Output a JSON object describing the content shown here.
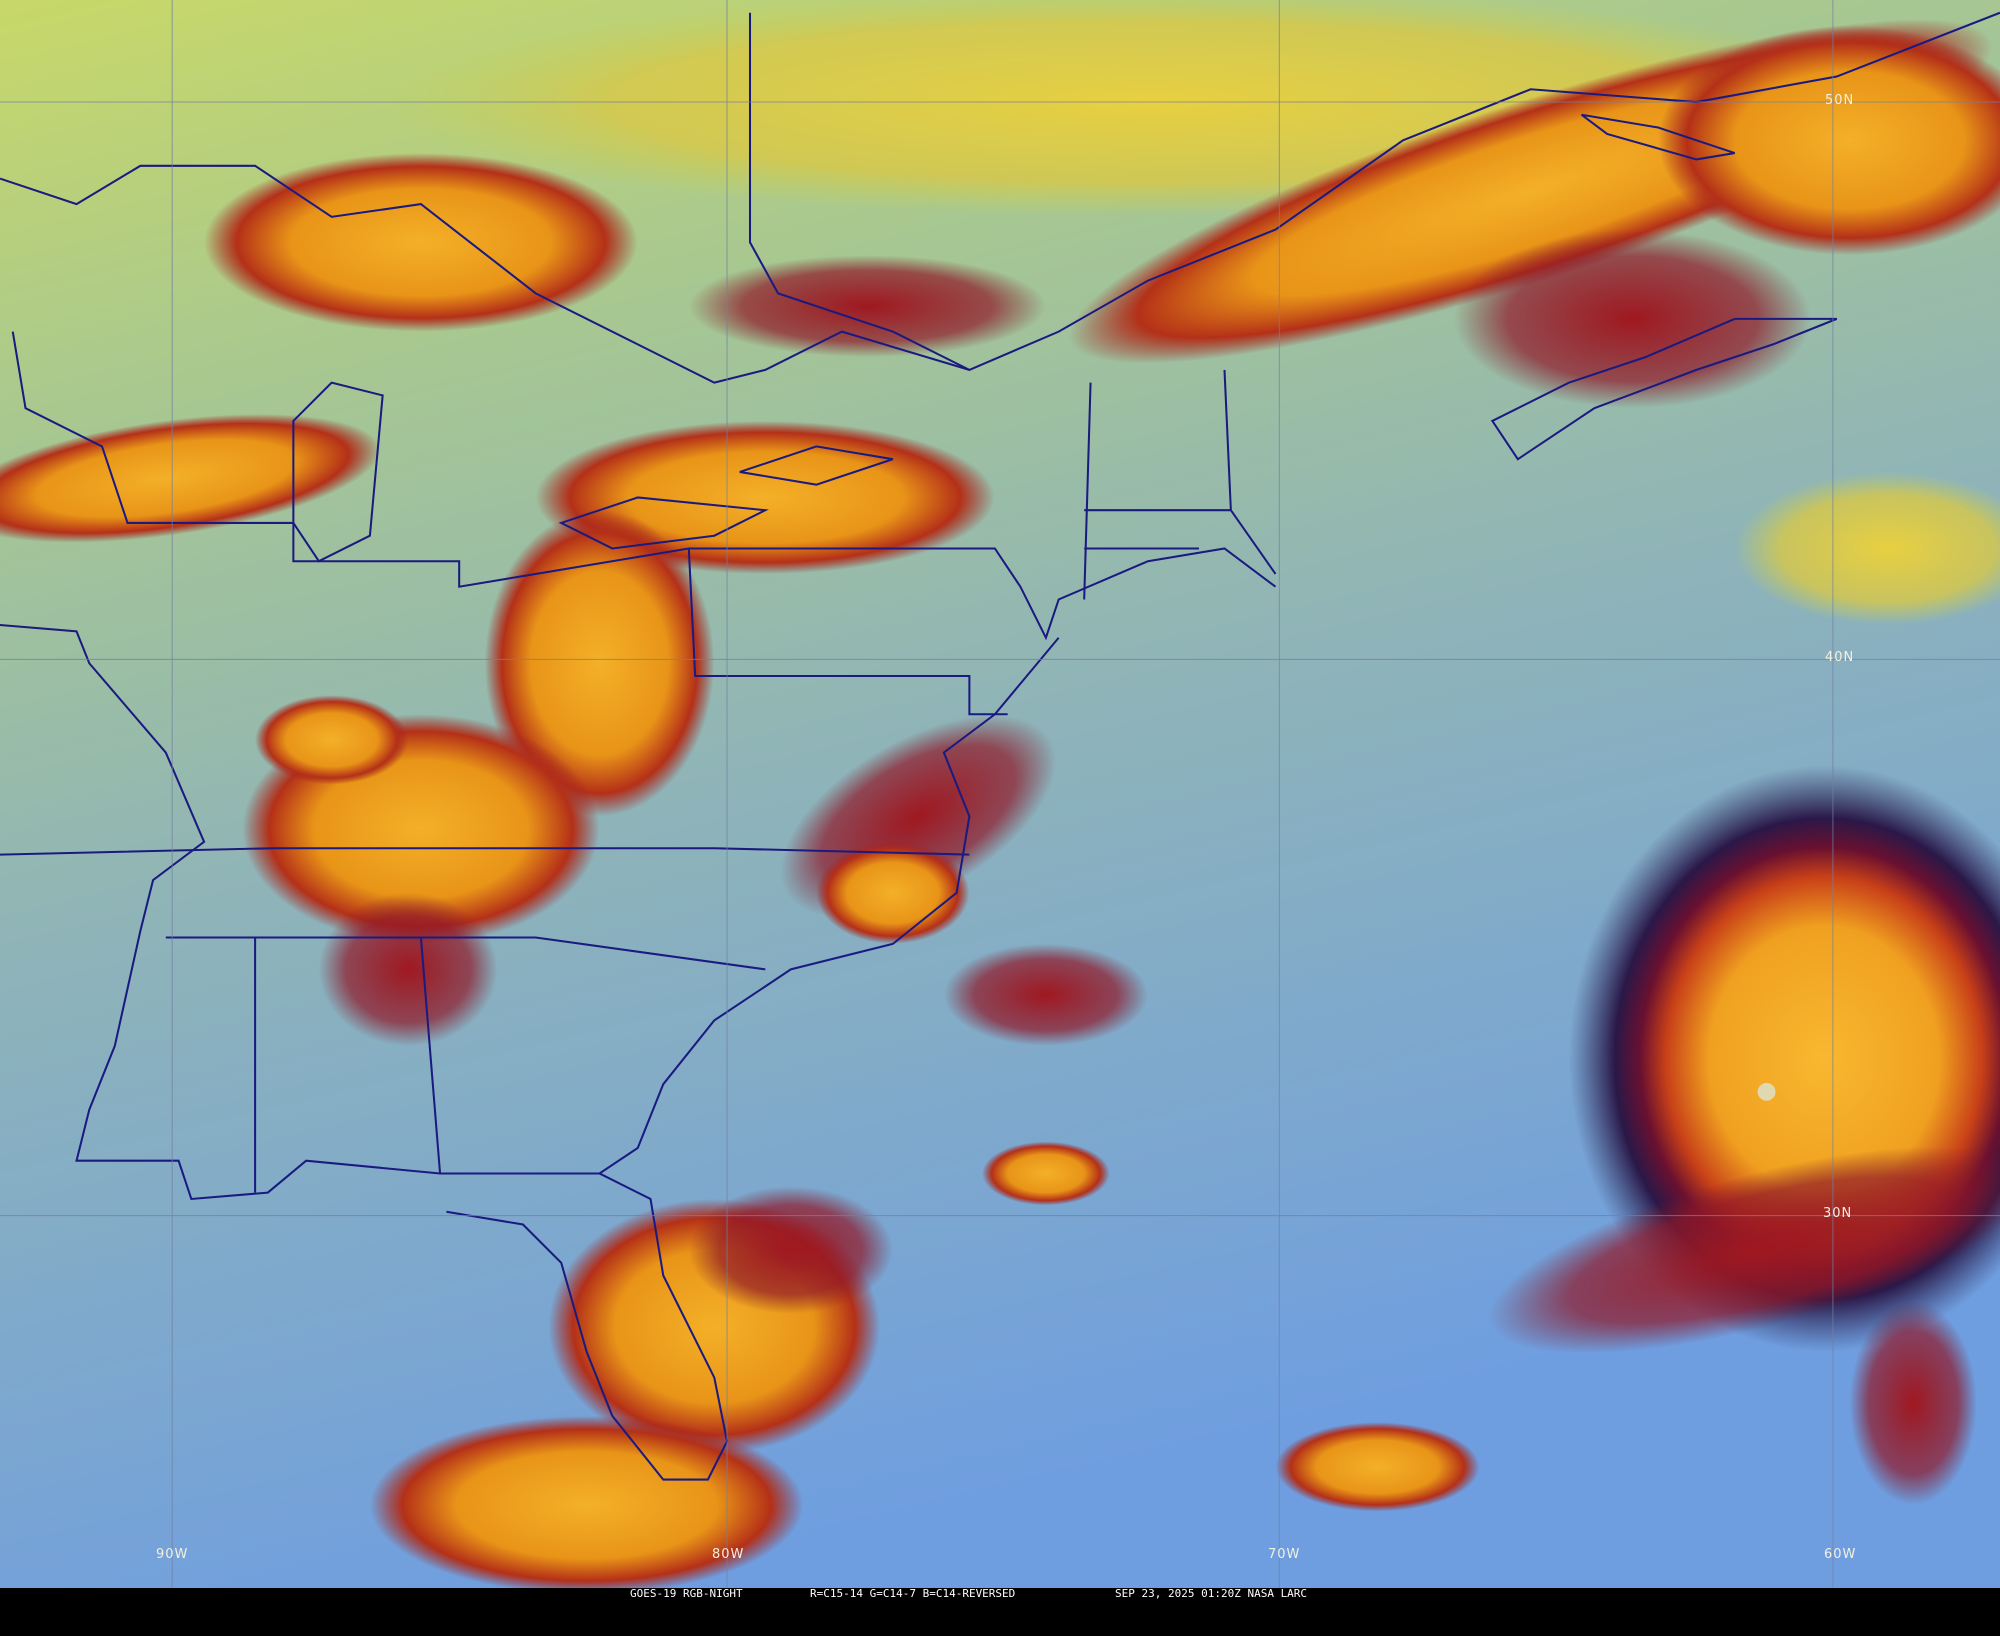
{
  "map": {
    "type": "satellite-imagery",
    "product": "RGB night composite",
    "colors": {
      "ocean": "#78a4d8",
      "land": "#9cb894",
      "high_cloud": "#f0a01c",
      "cold_cloud_edge": "#a41820",
      "very_cold": "#3a1a4a",
      "low_cloud": "#c8d860",
      "borders": "#1a1a80"
    },
    "grid": {
      "latitudes": [
        "50N",
        "40N",
        "30N"
      ],
      "longitudes": [
        "90W",
        "80W",
        "70W",
        "60W"
      ]
    },
    "features": [
      "hurricane-eye"
    ]
  },
  "caption": {
    "satellite": "GOES-19 RGB-NIGHT",
    "channels": "R=C15-14 G=C14-7 B=C14-REVERSED",
    "datetime": "SEP 23, 2025 01:20Z NASA LARC"
  }
}
